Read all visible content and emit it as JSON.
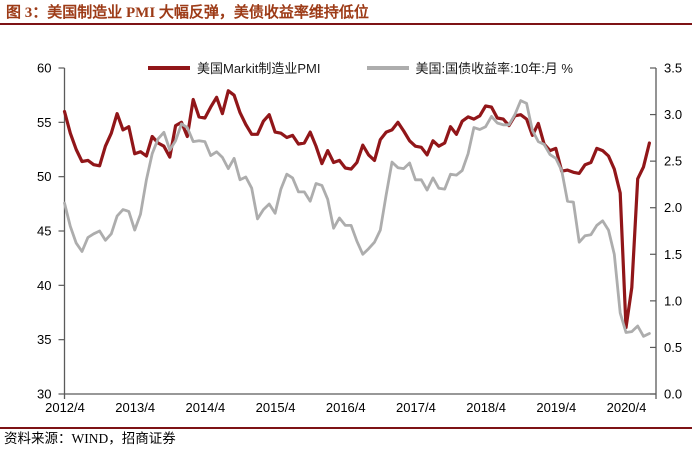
{
  "header": {
    "title": "图 3：美国制造业 PMI 大幅反弹，美债收益率维持低位"
  },
  "footer": {
    "source": "资料来源：WIND，招商证券"
  },
  "legend": [
    {
      "label": "美国Markit制造业PMI",
      "color": "#911619"
    },
    {
      "label": "美国:国债收益率:10年:月 %",
      "color": "#ADADAD"
    }
  ],
  "colors": {
    "title_accent": "#9D3B17",
    "divider_rule": "#7E1315",
    "axis": "#5A5A5A",
    "tick_text": "#000000",
    "pmi_line": "#911619",
    "yield_line": "#ADADAD"
  },
  "chart_data": {
    "type": "line",
    "title": "",
    "x_interval": "month",
    "x_start": "2012/4",
    "x_end": "2020/8",
    "x_tick_labels": [
      "2012/4",
      "2013/4",
      "2014/4",
      "2015/4",
      "2016/4",
      "2017/4",
      "2018/4",
      "2019/4",
      "2020/4"
    ],
    "left_axis": {
      "label": "",
      "min": 30,
      "max": 60,
      "tick_labels": [
        "60",
        "55",
        "50",
        "45",
        "40",
        "35",
        "30"
      ]
    },
    "right_axis": {
      "label": "%",
      "min": 0.0,
      "max": 3.5,
      "tick_labels": [
        "3.5",
        "3.0",
        "2.5",
        "2.0",
        "1.5",
        "1.0",
        "0.5",
        "0.0"
      ]
    },
    "grid": false,
    "legend_position": "top",
    "series": [
      {
        "name": "美国Markit制造业PMI",
        "axis": "left",
        "color": "#911619",
        "values": [
          56.0,
          54.0,
          52.5,
          51.4,
          51.5,
          51.1,
          51.0,
          52.8,
          54.0,
          55.8,
          54.3,
          54.6,
          52.1,
          52.3,
          51.9,
          53.7,
          53.1,
          52.8,
          51.8,
          54.7,
          55.0,
          53.7,
          57.1,
          55.5,
          55.4,
          56.4,
          57.3,
          55.8,
          57.9,
          57.5,
          55.9,
          54.8,
          53.9,
          53.9,
          55.1,
          55.7,
          54.1,
          54.0,
          53.6,
          53.8,
          53.0,
          53.1,
          54.1,
          52.8,
          51.2,
          52.4,
          51.3,
          51.5,
          50.8,
          50.7,
          51.3,
          52.9,
          52.0,
          51.5,
          53.4,
          54.1,
          54.3,
          55.0,
          54.2,
          53.3,
          52.8,
          52.7,
          52.0,
          53.3,
          52.8,
          53.1,
          54.6,
          53.9,
          55.1,
          55.5,
          55.3,
          55.6,
          56.5,
          56.4,
          55.4,
          55.3,
          54.7,
          55.6,
          55.7,
          55.3,
          53.8,
          54.9,
          53.0,
          52.4,
          52.6,
          50.5,
          50.6,
          50.4,
          50.3,
          51.1,
          51.3,
          52.6,
          52.4,
          51.9,
          50.7,
          48.5,
          36.1,
          39.8,
          49.8,
          50.9,
          53.1
        ]
      },
      {
        "name": "美国:国债收益率:10年:月 %",
        "axis": "right",
        "color": "#ADADAD",
        "values": [
          2.05,
          1.8,
          1.62,
          1.53,
          1.68,
          1.72,
          1.75,
          1.65,
          1.72,
          1.91,
          1.98,
          1.96,
          1.76,
          1.93,
          2.3,
          2.58,
          2.74,
          2.81,
          2.62,
          2.72,
          2.9,
          2.86,
          2.71,
          2.72,
          2.71,
          2.56,
          2.6,
          2.54,
          2.42,
          2.53,
          2.3,
          2.33,
          2.21,
          1.88,
          1.98,
          2.04,
          1.94,
          2.2,
          2.36,
          2.32,
          2.17,
          2.17,
          2.07,
          2.26,
          2.24,
          2.09,
          1.78,
          1.89,
          1.81,
          1.81,
          1.64,
          1.5,
          1.56,
          1.63,
          1.76,
          2.14,
          2.49,
          2.43,
          2.42,
          2.48,
          2.3,
          2.3,
          2.19,
          2.32,
          2.21,
          2.2,
          2.36,
          2.35,
          2.4,
          2.58,
          2.86,
          2.84,
          2.87,
          2.98,
          2.91,
          2.89,
          2.89,
          3.0,
          3.15,
          3.12,
          2.83,
          2.71,
          2.68,
          2.57,
          2.53,
          2.4,
          2.07,
          2.06,
          1.63,
          1.7,
          1.71,
          1.81,
          1.86,
          1.76,
          1.5,
          0.87,
          0.66,
          0.67,
          0.73,
          0.62,
          0.65
        ]
      }
    ]
  }
}
